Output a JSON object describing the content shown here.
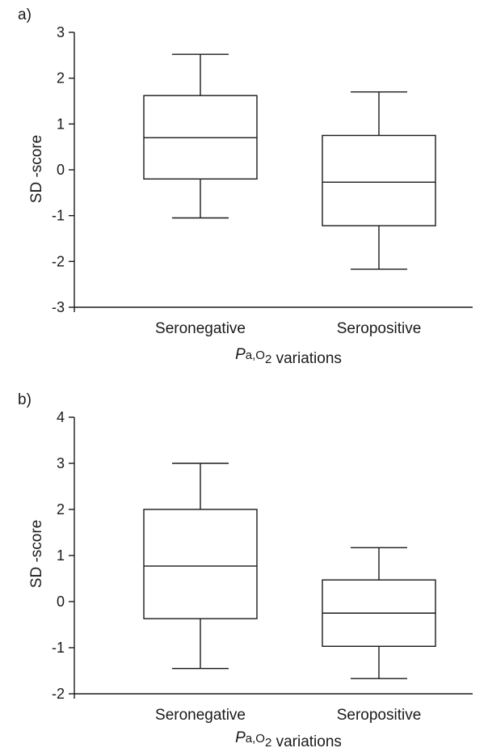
{
  "chart_data": [
    {
      "type": "box",
      "panel_label": "a)",
      "ylabel": "SD -score",
      "xlabel_prefix": "Pa,O2",
      "xlabel_suffix": "variations",
      "ylim": [
        -3,
        3
      ],
      "yticks": [
        3,
        2,
        1,
        0,
        -1,
        -2,
        -3
      ],
      "categories": [
        "Seronegative",
        "Seropositive"
      ],
      "boxes": [
        {
          "min": -1.05,
          "q1": -0.2,
          "median": 0.7,
          "q3": 1.62,
          "max": 2.52
        },
        {
          "min": -2.17,
          "q1": -1.22,
          "median": -0.27,
          "q3": 0.75,
          "max": 1.7
        }
      ],
      "grid": false
    },
    {
      "type": "box",
      "panel_label": "b)",
      "ylabel": "SD -score",
      "xlabel_prefix": "Pa,O2",
      "xlabel_suffix": "variations",
      "ylim": [
        -2,
        4
      ],
      "yticks": [
        4,
        3,
        2,
        1,
        0,
        -1,
        -2
      ],
      "categories": [
        "Seronegative",
        "Seropositive"
      ],
      "boxes": [
        {
          "min": -1.45,
          "q1": -0.37,
          "median": 0.77,
          "q3": 2.0,
          "max": 3.0
        },
        {
          "min": -1.67,
          "q1": -0.97,
          "median": -0.25,
          "q3": 0.47,
          "max": 1.17
        }
      ],
      "grid": false
    }
  ]
}
